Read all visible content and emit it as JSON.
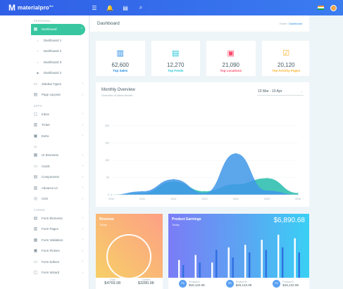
{
  "brand": {
    "logo": "M",
    "name": "materialpro",
    "sup": "lite"
  },
  "topbar": {
    "icons": [
      "menu-icon",
      "bell-icon",
      "chat-icon",
      "search-icon"
    ],
    "glyphs": [
      "☰",
      "🔔",
      "▤",
      "⌕"
    ]
  },
  "sidebar": {
    "sections": [
      {
        "title": "Personal",
        "items": [
          {
            "label": "Dashboard",
            "icon": "dashboard-icon",
            "glyph": "▦",
            "active": true,
            "caret": "⌃"
          },
          {
            "label": "Dashboard 1",
            "icon": "circle-icon",
            "glyph": "○",
            "sub": true
          },
          {
            "label": "Dashboard 2",
            "icon": "circle-icon",
            "glyph": "○",
            "sub": true
          },
          {
            "label": "Dashboard 3",
            "icon": "circle-icon",
            "glyph": "○",
            "sub": true
          },
          {
            "label": "Dashboard 4",
            "icon": "target-icon",
            "glyph": "◉",
            "sub": true
          },
          {
            "label": "Sidebar Types",
            "icon": "sidebar-icon",
            "glyph": "▭",
            "caret": "›"
          },
          {
            "label": "Page Layouts",
            "icon": "layout-icon",
            "glyph": "▤",
            "caret": "›"
          }
        ]
      },
      {
        "title": "Apps",
        "items": [
          {
            "label": "Inbox",
            "icon": "inbox-icon",
            "glyph": "▢",
            "caret": "›"
          },
          {
            "label": "Ticket",
            "icon": "ticket-icon",
            "glyph": "▥",
            "caret": "›"
          },
          {
            "label": "Extra",
            "icon": "extra-icon",
            "glyph": "▣",
            "caret": "›"
          }
        ]
      },
      {
        "title": "UI",
        "items": [
          {
            "label": "UI Elements",
            "icon": "elements-icon",
            "glyph": "▦",
            "caret": "›"
          },
          {
            "label": "Cards",
            "icon": "cards-icon",
            "glyph": "▭",
            "caret": "›"
          },
          {
            "label": "Components",
            "icon": "components-icon",
            "glyph": "▤",
            "caret": "›"
          },
          {
            "label": "Advance UI",
            "icon": "advance-icon",
            "glyph": "▥",
            "caret": "›"
          },
          {
            "label": "CSS",
            "icon": "css-icon",
            "glyph": "◎",
            "caret": "›"
          }
        ]
      },
      {
        "title": "Forms",
        "items": [
          {
            "label": "Form Elements",
            "icon": "form-elements-icon",
            "glyph": "▤",
            "caret": "›"
          },
          {
            "label": "Form Pages",
            "icon": "form-pages-icon",
            "glyph": "▥",
            "caret": "›"
          },
          {
            "label": "Form Validation",
            "icon": "validation-icon",
            "glyph": "▦",
            "caret": "›"
          },
          {
            "label": "Form Pickers",
            "icon": "pickers-icon",
            "glyph": "▣",
            "caret": "›"
          },
          {
            "label": "Form Editors",
            "icon": "editors-icon",
            "glyph": "▭",
            "caret": "›"
          },
          {
            "label": "Form Wizard",
            "icon": "wizard-icon",
            "glyph": "▢",
            "caret": "›"
          }
        ]
      }
    ]
  },
  "page": {
    "title": "Dashboard",
    "breadcrumb": [
      "Home",
      "Dashboard"
    ],
    "breadcrumb_sep": "›"
  },
  "stats": [
    {
      "value": "62,600",
      "label": "Top Sales",
      "color": "#1e88e5",
      "icon": "bar-chart-icon",
      "glyph": "▥"
    },
    {
      "value": "12,270",
      "label": "Top Feeds",
      "color": "#26c6da",
      "icon": "document-icon",
      "glyph": "▤"
    },
    {
      "value": "21,090",
      "label": "Top Locations",
      "color": "#fc4b6c",
      "icon": "store-icon",
      "glyph": "▣"
    },
    {
      "value": "20,120",
      "label": "Top Activity Pages",
      "color": "#ffb22b",
      "icon": "check-square-icon",
      "glyph": "☑"
    }
  ],
  "overview": {
    "title": "Monthly Overview",
    "subtitle": "Overview of latest Month",
    "select": "10 Mar - 10 Apr",
    "select_arrow": "⌄"
  },
  "chart_data": {
    "type": "area",
    "title": "Monthly Overview",
    "x": [
      "2010",
      "2011",
      "2012",
      "2013",
      "2014",
      "2015",
      "2016"
    ],
    "ylim": [
      0,
      200
    ],
    "yticks": [
      "0",
      "50",
      "100",
      "150",
      "200"
    ],
    "series": [
      {
        "color": "#3cc3b4",
        "values": [
          0,
          5,
          38,
          10,
          30,
          48,
          5
        ]
      },
      {
        "color": "#3f96e8",
        "values": [
          0,
          10,
          45,
          5,
          120,
          12,
          0
        ]
      }
    ],
    "grid": true
  },
  "revenue": {
    "title": "Revenue",
    "sub": "Today",
    "goal_label": "Goal",
    "goal": "$4769.08",
    "current_label": "Current",
    "current": "$3280.98"
  },
  "earnings": {
    "title": "Product Earnings",
    "sub": "Today",
    "value": "$6,890.68",
    "bars": [
      {
        "white": 0.35,
        "blue": 0.25
      },
      {
        "white": 0.45,
        "blue": 0.3
      },
      {
        "white": 0.3,
        "blue": 0.55
      },
      {
        "white": 0.6,
        "blue": 0.4
      },
      {
        "white": 0.65,
        "blue": 0.5
      },
      {
        "white": 0.75,
        "blue": 0.55
      },
      {
        "white": 0.85,
        "blue": 0.6
      },
      {
        "white": 0.78,
        "blue": 0.5
      }
    ],
    "products": [
      {
        "badge": "PA",
        "label": "Product A",
        "value": "$16,122.08"
      },
      {
        "badge": "PB",
        "label": "Product B",
        "value": "$26,122.08"
      },
      {
        "badge": "PC",
        "label": "Product C",
        "value": "$16,122.08"
      }
    ]
  }
}
